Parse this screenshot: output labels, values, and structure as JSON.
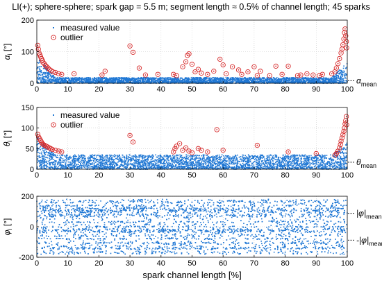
{
  "figure": {
    "title": "LI(+); sphere-sphere; spark gap = 5.5 m; segment length ≈ 0.5% of channel length; 45 sparks",
    "colors": {
      "measured": "#1f77d4",
      "outlier": "#d62728",
      "axis": "#000000",
      "grid": "#c8c8c8"
    }
  },
  "chart_data": [
    {
      "type": "scatter",
      "panel": "alpha",
      "ylabel": "α_i [°]",
      "xlabel": "",
      "xlim": [
        0,
        100
      ],
      "ylim": [
        0,
        200
      ],
      "xticks": [
        "0",
        "10",
        "20",
        "30",
        "40",
        "50",
        "60",
        "70",
        "80",
        "90",
        "100"
      ],
      "yticks": [
        "0",
        "100",
        "200"
      ],
      "grid": true,
      "legend": {
        "placement": "top-left",
        "entries": [
          "measured value",
          "outlier"
        ]
      },
      "reference_lines": [
        {
          "label": "α",
          "sub": "mean",
          "value": 8
        }
      ],
      "series": [
        {
          "name": "measured value",
          "marker": "dot",
          "distribution": {
            "band_low": 0,
            "band_high": 18,
            "edge_rise_left": 70,
            "edge_rise_right": 50,
            "approx_count": 3500
          }
        },
        {
          "name": "outlier",
          "marker": "circle-dot",
          "points": [
            [
              0.3,
              120
            ],
            [
              0.5,
              108
            ],
            [
              0.7,
              96
            ],
            [
              1,
              90
            ],
            [
              1.2,
              84
            ],
            [
              1.5,
              78
            ],
            [
              1.8,
              72
            ],
            [
              2,
              66
            ],
            [
              2.4,
              62
            ],
            [
              2.8,
              56
            ],
            [
              3.2,
              52
            ],
            [
              3.6,
              48
            ],
            [
              4,
              44
            ],
            [
              4.6,
              40
            ],
            [
              5.2,
              36
            ],
            [
              6,
              34
            ],
            [
              7,
              30
            ],
            [
              8,
              28
            ],
            [
              12,
              30
            ],
            [
              21,
              26
            ],
            [
              22,
              38
            ],
            [
              30,
              118
            ],
            [
              31,
              98
            ],
            [
              33,
              48
            ],
            [
              35,
              26
            ],
            [
              39,
              28
            ],
            [
              44,
              28
            ],
            [
              45,
              24
            ],
            [
              47,
              52
            ],
            [
              48,
              68
            ],
            [
              48.5,
              88
            ],
            [
              49,
              93
            ],
            [
              50,
              60
            ],
            [
              51,
              36
            ],
            [
              52,
              44
            ],
            [
              53,
              32
            ],
            [
              55,
              28
            ],
            [
              57,
              38
            ],
            [
              59,
              76
            ],
            [
              60,
              58
            ],
            [
              61,
              30
            ],
            [
              63,
              52
            ],
            [
              65,
              42
            ],
            [
              66,
              28
            ],
            [
              68,
              36
            ],
            [
              70,
              52
            ],
            [
              71,
              24
            ],
            [
              72,
              38
            ],
            [
              75,
              24
            ],
            [
              77,
              54
            ],
            [
              79,
              28
            ],
            [
              81,
              54
            ],
            [
              84,
              24
            ],
            [
              85,
              26
            ],
            [
              87,
              30
            ],
            [
              89,
              26
            ],
            [
              91,
              24
            ],
            [
              92,
              28
            ],
            [
              95,
              30
            ],
            [
              96,
              36
            ],
            [
              96.5,
              48
            ],
            [
              97,
              62
            ],
            [
              97.5,
              78
            ],
            [
              98,
              96
            ],
            [
              98.3,
              108
            ],
            [
              98.6,
              122
            ],
            [
              98.9,
              140
            ],
            [
              99.1,
              160
            ],
            [
              99.3,
              172
            ],
            [
              99.5,
              150
            ],
            [
              99.7,
              132
            ],
            [
              99.8,
              112
            ]
          ]
        }
      ]
    },
    {
      "type": "scatter",
      "panel": "theta",
      "ylabel": "θ_i [°]",
      "xlabel": "",
      "xlim": [
        0,
        100
      ],
      "ylim": [
        0,
        150
      ],
      "xticks": [
        "0",
        "10",
        "20",
        "30",
        "40",
        "50",
        "60",
        "70",
        "80",
        "90",
        "100"
      ],
      "yticks": [
        "0",
        "50",
        "100",
        "150"
      ],
      "grid": true,
      "legend": {
        "placement": "top-left",
        "entries": [
          "measured value",
          "outlier"
        ]
      },
      "reference_lines": [
        {
          "label": "θ",
          "sub": "mean",
          "value": 17
        }
      ],
      "series": [
        {
          "name": "measured value",
          "marker": "dot",
          "distribution": {
            "band_low": 0,
            "band_high": 35,
            "edge_rise_left": 45,
            "edge_rise_right": 30,
            "approx_count": 3500
          }
        },
        {
          "name": "outlier",
          "marker": "circle-dot",
          "points": [
            [
              0.3,
              85
            ],
            [
              0.6,
              78
            ],
            [
              0.9,
              74
            ],
            [
              1.2,
              70
            ],
            [
              1.5,
              66
            ],
            [
              1.8,
              62
            ],
            [
              2.1,
              60
            ],
            [
              2.5,
              58
            ],
            [
              3,
              56
            ],
            [
              3.5,
              54
            ],
            [
              4,
              52
            ],
            [
              4.5,
              50
            ],
            [
              5,
              48
            ],
            [
              6,
              46
            ],
            [
              7,
              44
            ],
            [
              8,
              42
            ],
            [
              30,
              82
            ],
            [
              31,
              66
            ],
            [
              44,
              42
            ],
            [
              44.5,
              50
            ],
            [
              45,
              56
            ],
            [
              46,
              62
            ],
            [
              47,
              46
            ],
            [
              48,
              52
            ],
            [
              49,
              44
            ],
            [
              50,
              40
            ],
            [
              52,
              50
            ],
            [
              53,
              46
            ],
            [
              55,
              42
            ],
            [
              58,
              96
            ],
            [
              60,
              46
            ],
            [
              71,
              58
            ],
            [
              81,
              42
            ],
            [
              90,
              38
            ],
            [
              96,
              34
            ],
            [
              96.5,
              38
            ],
            [
              97,
              44
            ],
            [
              97.5,
              52
            ],
            [
              97.8,
              60
            ],
            [
              98,
              68
            ],
            [
              98.3,
              76
            ],
            [
              98.6,
              84
            ],
            [
              98.9,
              92
            ],
            [
              99.1,
              100
            ],
            [
              99.3,
              110
            ],
            [
              99.5,
              118
            ],
            [
              99.7,
              128
            ],
            [
              99.8,
              108
            ]
          ]
        }
      ]
    },
    {
      "type": "scatter",
      "panel": "phi",
      "ylabel": "φ_i [°]",
      "xlabel": "spark channel length [%]",
      "xlim": [
        0,
        100
      ],
      "ylim": [
        -200,
        200
      ],
      "xticks": [
        "0",
        "10",
        "20",
        "30",
        "40",
        "50",
        "60",
        "70",
        "80",
        "90",
        "100"
      ],
      "yticks": [
        "-200",
        "0",
        "200"
      ],
      "grid": true,
      "reference_lines": [
        {
          "label": "|φ|",
          "sub": "mean",
          "value": 88
        },
        {
          "label": "-|φ|",
          "sub": "mean",
          "value": -88
        }
      ],
      "series": [
        {
          "name": "measured value",
          "marker": "dot",
          "distribution": {
            "band_low": -180,
            "band_high": 180,
            "horizontal_streaks": true,
            "approx_count": 4500
          }
        }
      ]
    }
  ]
}
